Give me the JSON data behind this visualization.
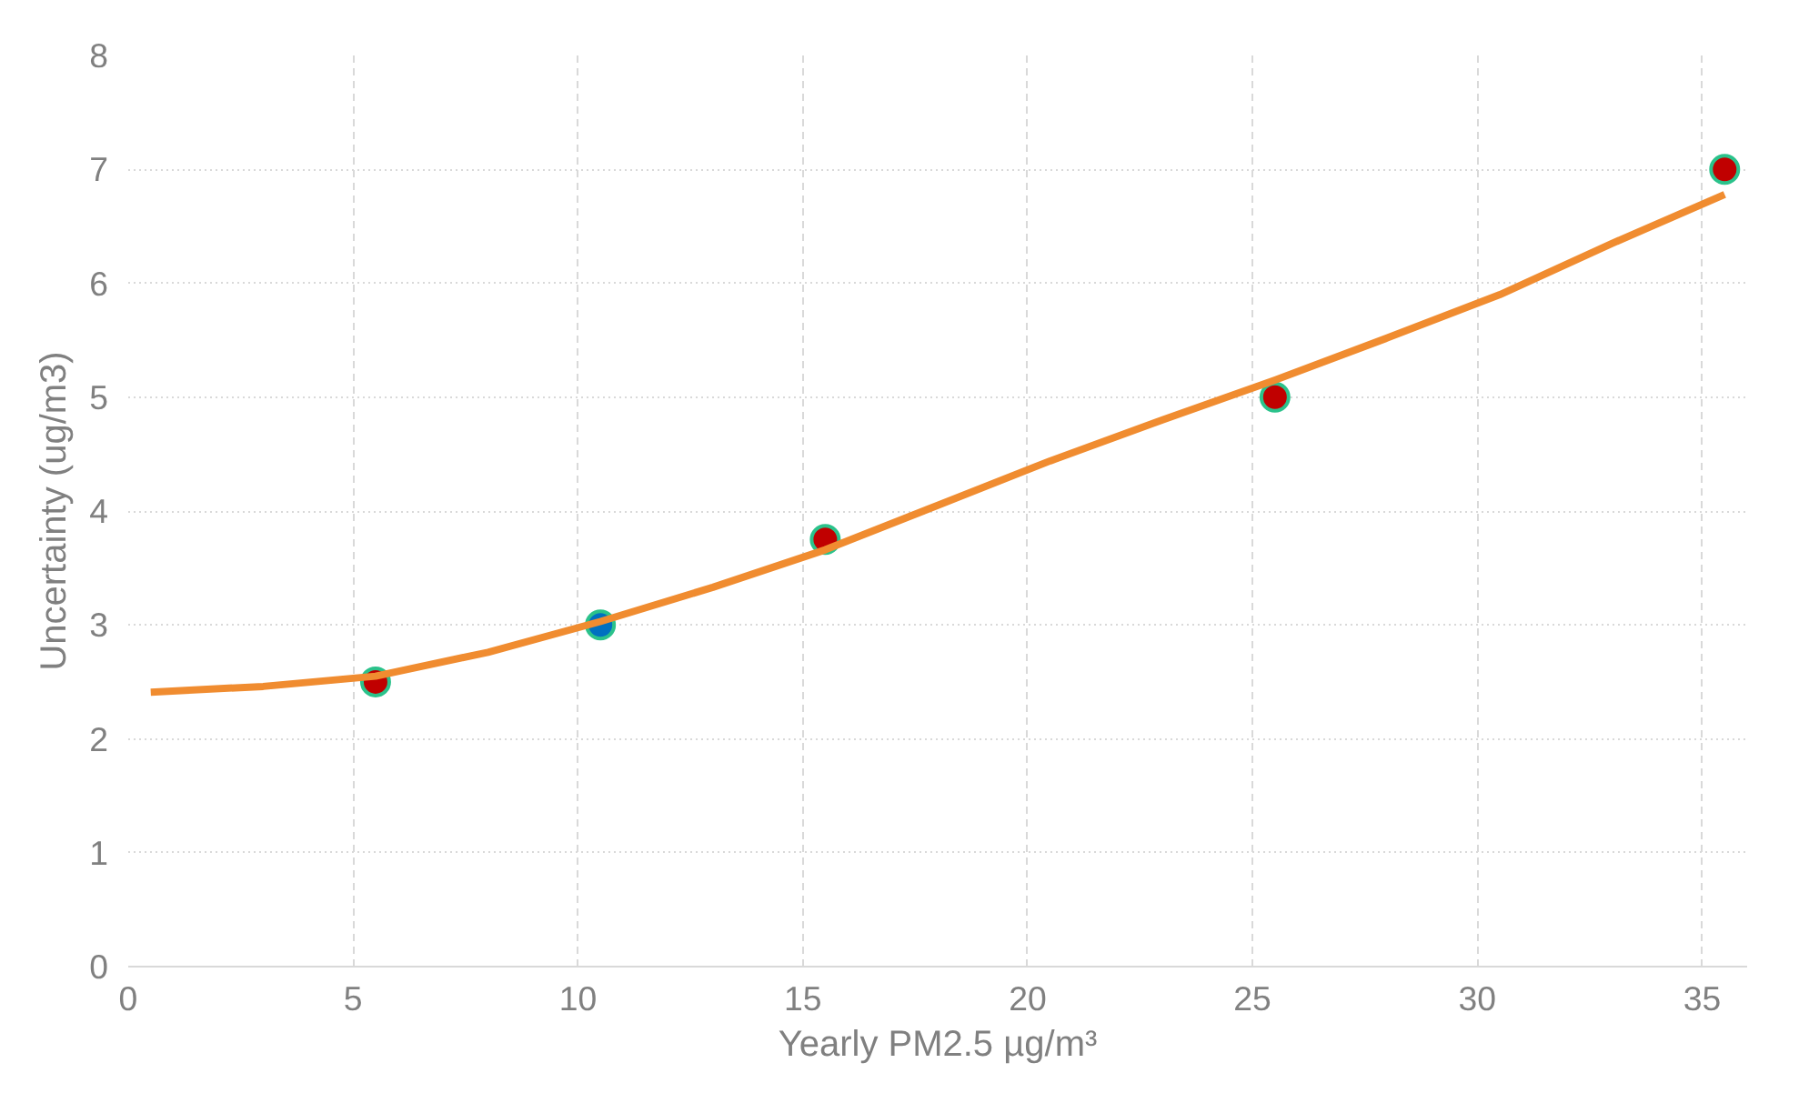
{
  "chart_data": {
    "type": "scatter",
    "xlabel": "Yearly PM2.5 µg/m³",
    "ylabel": "Uncertainty (ug/m3)",
    "xlim": [
      0,
      36
    ],
    "ylim": [
      0,
      8
    ],
    "xticks": [
      0,
      5,
      10,
      15,
      20,
      25,
      30,
      35
    ],
    "yticks": [
      0,
      1,
      2,
      3,
      4,
      5,
      6,
      7,
      8
    ],
    "grid": true,
    "series": [
      {
        "marker": "circle",
        "x": [
          5.5,
          10.5,
          15.5,
          25.5,
          35.5
        ],
        "values": [
          2.5,
          3.0,
          3.75,
          5.0,
          7.0
        ],
        "colors": [
          "#c00000",
          "#0070c0",
          "#c00000",
          "#c00000",
          "#c00000"
        ],
        "color": "#2bc28b"
      },
      {
        "type": "line",
        "marker": "none",
        "line_style": "solid",
        "color": "#f08c30",
        "x": [
          0.5,
          3,
          5.5,
          8,
          10.5,
          13,
          15.5,
          18,
          20.5,
          23,
          25.5,
          28,
          30.5,
          33,
          35.5
        ],
        "values": [
          2.41,
          2.46,
          2.55,
          2.76,
          3.03,
          3.33,
          3.66,
          4.05,
          4.44,
          4.8,
          5.15,
          5.52,
          5.9,
          6.35,
          6.78
        ]
      }
    ]
  }
}
